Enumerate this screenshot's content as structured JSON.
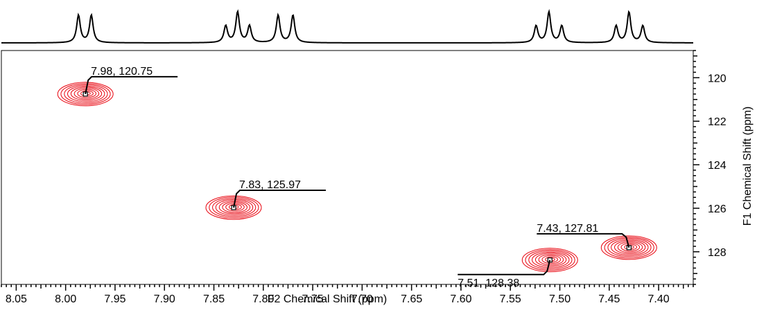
{
  "chart_data": {
    "type": "contour",
    "subtype": "2D NMR HSQC",
    "xlabel": "F2 Chemical Shift (ppm)",
    "ylabel": "F1 Chemical Shift (ppm)",
    "xlim": [
      8.065,
      7.365
    ],
    "ylim": [
      118.75,
      129.5
    ],
    "x_reversed": true,
    "x_ticks": [
      8.05,
      8.0,
      7.95,
      7.9,
      7.85,
      7.8,
      7.75,
      7.7,
      7.65,
      7.6,
      7.55,
      7.5,
      7.45,
      7.4
    ],
    "x_tick_labels": [
      "8.05",
      "8.00",
      "7.95",
      "7.90",
      "7.85",
      "7.80",
      "7.75",
      "7.70",
      "7.65",
      "7.60",
      "7.55",
      "7.50",
      "7.45",
      "7.40"
    ],
    "y_ticks": [
      120,
      122,
      124,
      126,
      128
    ],
    "y_tick_labels": [
      "120",
      "122",
      "124",
      "126",
      "128"
    ],
    "y_axis_side": "right",
    "contour_color": "#e8000b",
    "grid": false,
    "peaks": [
      {
        "x": 7.98,
        "y": 120.75,
        "label": "7.98, 120.75",
        "label_side": "upper-right"
      },
      {
        "x": 7.83,
        "y": 125.97,
        "label": "7.83, 125.97",
        "label_side": "upper-right"
      },
      {
        "x": 7.51,
        "y": 128.38,
        "label": "7.51, 128.38",
        "label_side": "lower-left"
      },
      {
        "x": 7.43,
        "y": 127.81,
        "label": "7.43, 127.81",
        "label_side": "upper-left"
      }
    ],
    "projection_1d": {
      "axis": "F2",
      "position": "top",
      "multiplets": [
        {
          "center": 7.98,
          "lines": [
            7.987,
            7.974
          ]
        },
        {
          "center": 7.826,
          "lines": [
            7.838,
            7.826,
            7.814
          ]
        },
        {
          "center": 7.777,
          "lines": [
            7.785,
            7.77
          ]
        },
        {
          "center": 7.511,
          "lines": [
            7.524,
            7.511,
            7.498
          ]
        },
        {
          "center": 7.43,
          "lines": [
            7.443,
            7.43,
            7.416
          ]
        }
      ]
    }
  }
}
